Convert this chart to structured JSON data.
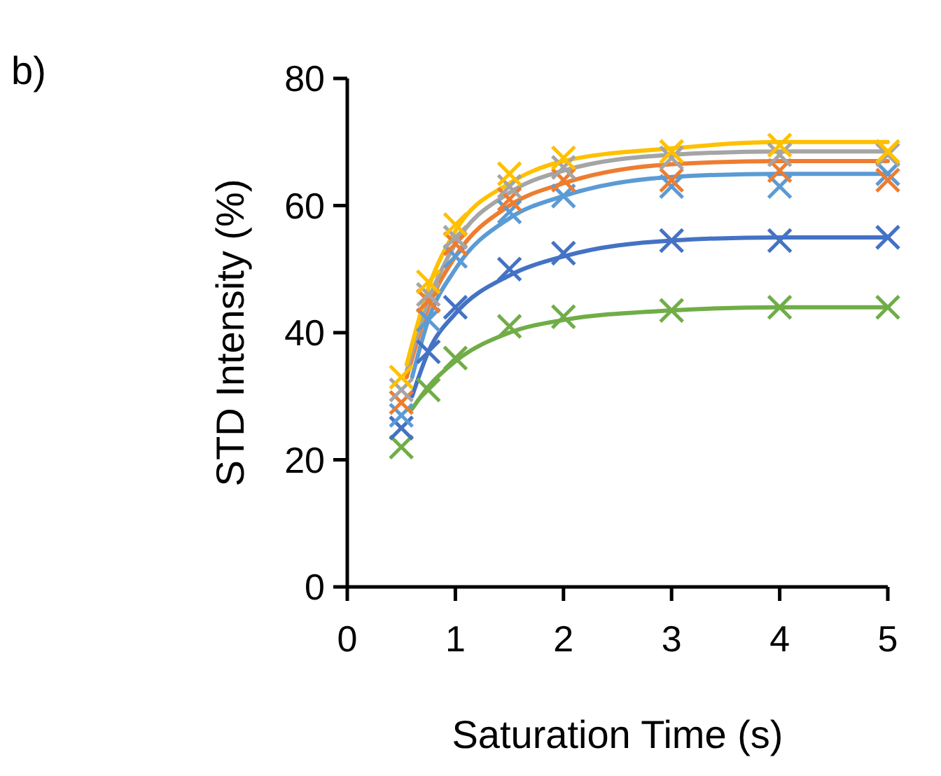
{
  "chart_data": {
    "type": "scatter",
    "title": "b)",
    "xlabel": "Saturation Time (s)",
    "ylabel": "STD Intensity (%)",
    "xlim": [
      0,
      5
    ],
    "xticks": [
      0,
      1,
      2,
      3,
      4,
      5
    ],
    "ylim": [
      0,
      80
    ],
    "yticks": [
      0,
      20,
      40,
      60,
      80
    ],
    "marker": "cross",
    "x": [
      0.5,
      0.75,
      1,
      1.5,
      2,
      3,
      4,
      5
    ],
    "series": [
      {
        "type": "line",
        "marker": "none",
        "color": "#70ad47",
        "x": [
          0.6,
          0.75,
          1,
          1.5,
          2,
          3,
          4,
          5
        ],
        "values": [
          28,
          31.5,
          35.5,
          40,
          42,
          43.5,
          44,
          44
        ]
      },
      {
        "type": "line",
        "marker": "none",
        "color": "#4472c4",
        "x": [
          0.6,
          0.75,
          1,
          1.5,
          2,
          3,
          4,
          5
        ],
        "values": [
          30,
          37,
          43,
          49,
          52,
          54.5,
          55,
          55
        ]
      },
      {
        "type": "line",
        "marker": "none",
        "color": "#5b9bd5",
        "x": [
          0.6,
          0.75,
          1,
          1.5,
          2,
          3,
          4,
          5
        ],
        "values": [
          33,
          42,
          50,
          58,
          61.5,
          64.5,
          65,
          65
        ]
      },
      {
        "type": "line",
        "marker": "none",
        "color": "#ed7d31",
        "x": [
          0.55,
          0.75,
          1,
          1.5,
          2,
          3,
          4,
          5
        ],
        "values": [
          33,
          44,
          52,
          60,
          63.5,
          66.5,
          67,
          67
        ]
      },
      {
        "type": "line",
        "marker": "none",
        "color": "#a5a5a5",
        "x": [
          0.55,
          0.75,
          1,
          1.5,
          2,
          3,
          4,
          5
        ],
        "values": [
          34,
          45,
          54,
          62,
          65.5,
          68,
          68.5,
          68.5
        ]
      },
      {
        "type": "line",
        "marker": "none",
        "color": "#ffc000",
        "x": [
          0.55,
          0.75,
          1,
          1.5,
          2,
          3,
          4,
          5
        ],
        "values": [
          35,
          47,
          56,
          63.5,
          67,
          69,
          70,
          70
        ]
      },
      {
        "color": "#70ad47",
        "values": [
          22,
          31,
          36,
          41,
          42.5,
          43.5,
          44,
          44
        ]
      },
      {
        "color": "#4472c4",
        "values": [
          25,
          37,
          44,
          50,
          52.5,
          54.5,
          54.5,
          55
        ]
      },
      {
        "color": "#5b9bd5",
        "values": [
          27,
          42,
          52,
          59,
          61.5,
          63,
          63,
          65
        ]
      },
      {
        "color": "#ed7d31",
        "values": [
          29,
          45,
          54,
          61,
          64,
          64,
          65.5,
          64
        ]
      },
      {
        "color": "#a5a5a5",
        "values": [
          31,
          46,
          55,
          63,
          66,
          67.5,
          68,
          68
        ]
      },
      {
        "color": "#ffc000",
        "values": [
          33,
          48,
          57,
          65,
          67.5,
          68.5,
          69.5,
          68.5
        ]
      }
    ]
  }
}
